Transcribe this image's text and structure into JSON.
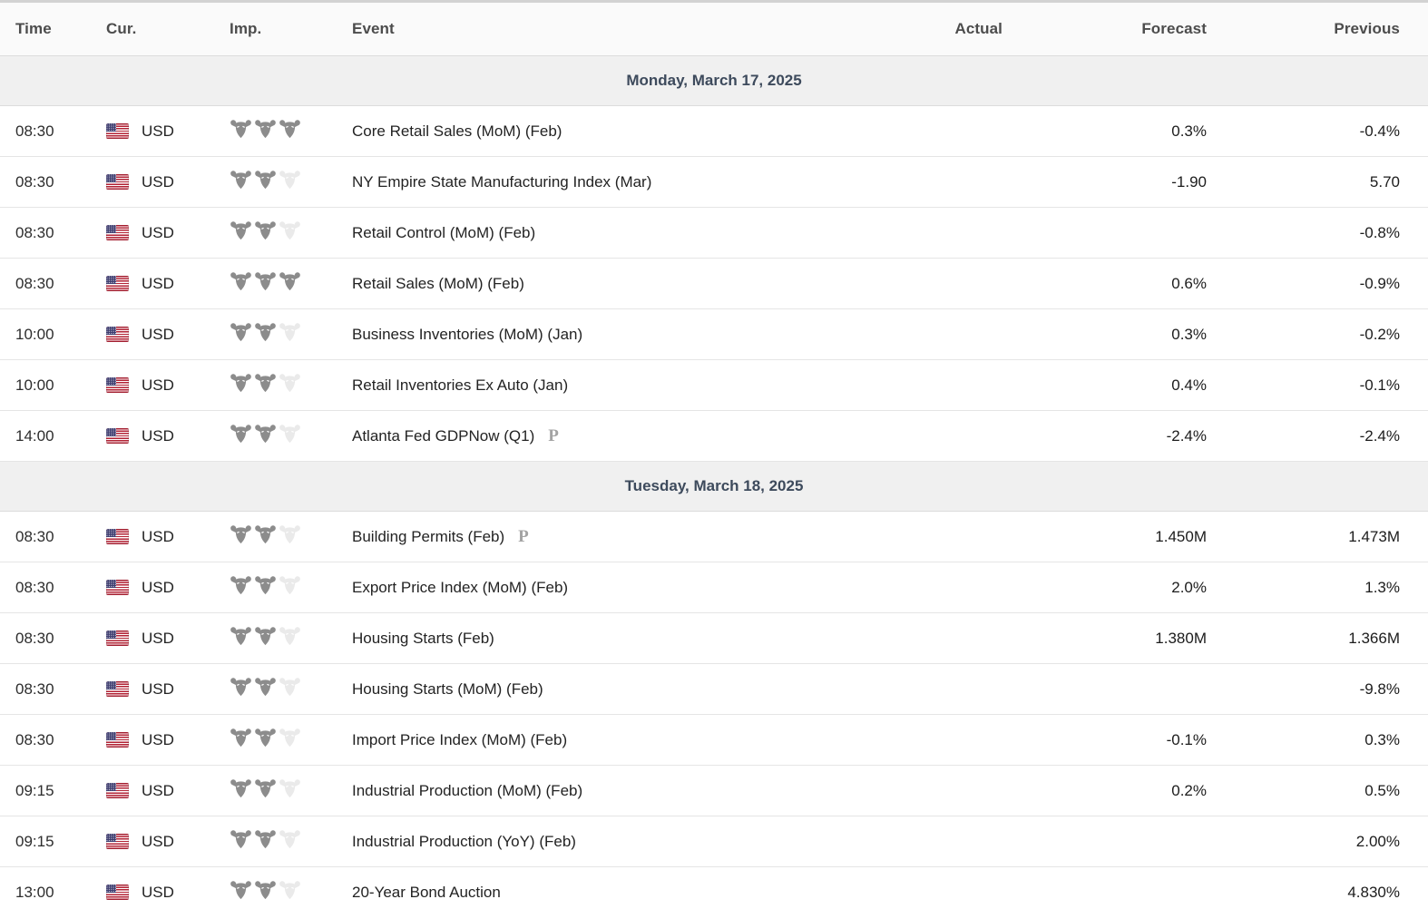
{
  "header": {
    "time": "Time",
    "cur": "Cur.",
    "imp": "Imp.",
    "event": "Event",
    "actual": "Actual",
    "forecast": "Forecast",
    "previous": "Previous"
  },
  "colors": {
    "importance_filled": "#8c8c8c",
    "importance_empty": "#eaeaea",
    "date_band_bg": "#f0f0f0",
    "date_text": "#3d4a5c",
    "flag_red": "#b22234",
    "flag_blue": "#3c3b6e"
  },
  "icons": {
    "importance": "bull-icon",
    "flag": "us-flag-icon",
    "preliminary": "P"
  },
  "importance_max": 3,
  "days": [
    {
      "date_label": "Monday, March 17, 2025",
      "rows": [
        {
          "time": "08:30",
          "currency": "USD",
          "importance": 3,
          "event": "Core Retail Sales (MoM) (Feb)",
          "prelim": false,
          "actual": "",
          "forecast": "0.3%",
          "previous": "-0.4%"
        },
        {
          "time": "08:30",
          "currency": "USD",
          "importance": 2,
          "event": "NY Empire State Manufacturing Index (Mar)",
          "prelim": false,
          "actual": "",
          "forecast": "-1.90",
          "previous": "5.70"
        },
        {
          "time": "08:30",
          "currency": "USD",
          "importance": 2,
          "event": "Retail Control (MoM) (Feb)",
          "prelim": false,
          "actual": "",
          "forecast": "",
          "previous": "-0.8%"
        },
        {
          "time": "08:30",
          "currency": "USD",
          "importance": 3,
          "event": "Retail Sales (MoM) (Feb)",
          "prelim": false,
          "actual": "",
          "forecast": "0.6%",
          "previous": "-0.9%"
        },
        {
          "time": "10:00",
          "currency": "USD",
          "importance": 2,
          "event": "Business Inventories (MoM) (Jan)",
          "prelim": false,
          "actual": "",
          "forecast": "0.3%",
          "previous": "-0.2%"
        },
        {
          "time": "10:00",
          "currency": "USD",
          "importance": 2,
          "event": "Retail Inventories Ex Auto (Jan)",
          "prelim": false,
          "actual": "",
          "forecast": "0.4%",
          "previous": "-0.1%"
        },
        {
          "time": "14:00",
          "currency": "USD",
          "importance": 2,
          "event": "Atlanta Fed GDPNow (Q1)",
          "prelim": true,
          "actual": "",
          "forecast": "-2.4%",
          "previous": "-2.4%"
        }
      ]
    },
    {
      "date_label": "Tuesday, March 18, 2025",
      "rows": [
        {
          "time": "08:30",
          "currency": "USD",
          "importance": 2,
          "event": "Building Permits (Feb)",
          "prelim": true,
          "actual": "",
          "forecast": "1.450M",
          "previous": "1.473M"
        },
        {
          "time": "08:30",
          "currency": "USD",
          "importance": 2,
          "event": "Export Price Index (MoM) (Feb)",
          "prelim": false,
          "actual": "",
          "forecast": "2.0%",
          "previous": "1.3%"
        },
        {
          "time": "08:30",
          "currency": "USD",
          "importance": 2,
          "event": "Housing Starts (Feb)",
          "prelim": false,
          "actual": "",
          "forecast": "1.380M",
          "previous": "1.366M"
        },
        {
          "time": "08:30",
          "currency": "USD",
          "importance": 2,
          "event": "Housing Starts (MoM) (Feb)",
          "prelim": false,
          "actual": "",
          "forecast": "",
          "previous": "-9.8%"
        },
        {
          "time": "08:30",
          "currency": "USD",
          "importance": 2,
          "event": "Import Price Index (MoM) (Feb)",
          "prelim": false,
          "actual": "",
          "forecast": "-0.1%",
          "previous": "0.3%"
        },
        {
          "time": "09:15",
          "currency": "USD",
          "importance": 2,
          "event": "Industrial Production (MoM) (Feb)",
          "prelim": false,
          "actual": "",
          "forecast": "0.2%",
          "previous": "0.5%"
        },
        {
          "time": "09:15",
          "currency": "USD",
          "importance": 2,
          "event": "Industrial Production (YoY) (Feb)",
          "prelim": false,
          "actual": "",
          "forecast": "",
          "previous": "2.00%"
        },
        {
          "time": "13:00",
          "currency": "USD",
          "importance": 2,
          "event": "20-Year Bond Auction",
          "prelim": false,
          "actual": "",
          "forecast": "",
          "previous": "4.830%"
        }
      ]
    }
  ]
}
